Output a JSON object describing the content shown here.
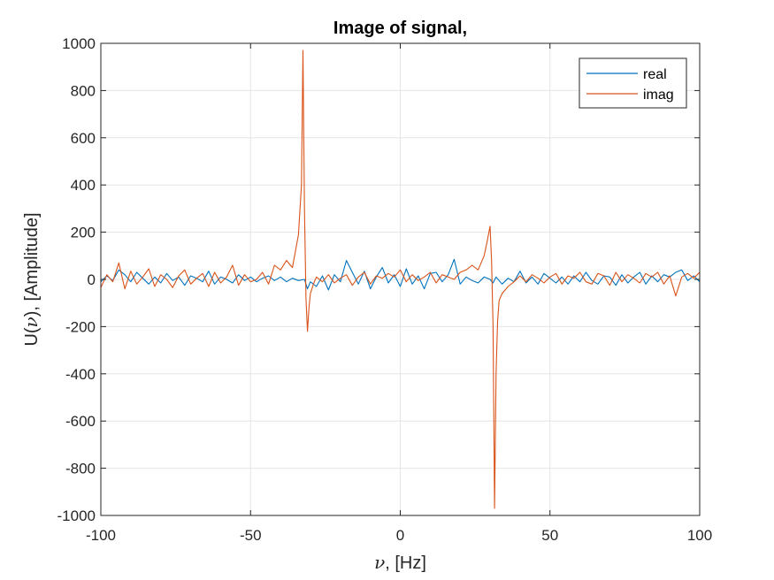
{
  "chart_data": {
    "type": "line",
    "title": "Image of signal,",
    "xlabel_symbol": "ν",
    "xlabel_unit": ", [Hz]",
    "ylabel_prefix": "U(",
    "ylabel_symbol": "ν",
    "ylabel_suffix": "), [Amplitude]",
    "xlim": [
      -100,
      100
    ],
    "ylim": [
      -1000,
      1000
    ],
    "xticks": [
      -100,
      -50,
      0,
      50,
      100
    ],
    "yticks": [
      -1000,
      -800,
      -600,
      -400,
      -200,
      0,
      200,
      400,
      600,
      800,
      1000
    ],
    "grid": true,
    "legend_position": "top-right",
    "colors": {
      "real": "#0072BD",
      "imag": "#D95319"
    },
    "series": [
      {
        "name": "real",
        "color": "#0072BD",
        "x": [
          -100,
          -98,
          -96,
          -94,
          -92,
          -90,
          -88,
          -86,
          -84,
          -82,
          -80,
          -78,
          -76,
          -74,
          -72,
          -70,
          -68,
          -66,
          -64,
          -62,
          -60,
          -58,
          -56,
          -54,
          -52,
          -50,
          -48,
          -46,
          -44,
          -42,
          -40,
          -38,
          -36,
          -34,
          -32,
          -31,
          -30,
          -28,
          -26,
          -24,
          -22,
          -20,
          -18,
          -16,
          -14,
          -12,
          -10,
          -8,
          -6,
          -4,
          -2,
          0,
          2,
          4,
          6,
          8,
          10,
          12,
          14,
          16,
          18,
          20,
          22,
          24,
          26,
          28,
          30,
          31,
          32,
          34,
          36,
          38,
          40,
          42,
          44,
          46,
          48,
          50,
          52,
          54,
          56,
          58,
          60,
          62,
          64,
          66,
          68,
          70,
          72,
          74,
          76,
          78,
          80,
          82,
          84,
          86,
          88,
          90,
          92,
          94,
          96,
          98,
          100
        ],
        "y": [
          -10,
          15,
          -5,
          40,
          20,
          -10,
          30,
          5,
          -20,
          10,
          -15,
          25,
          -5,
          10,
          -25,
          15,
          5,
          -10,
          35,
          -20,
          10,
          0,
          -15,
          20,
          -5,
          10,
          -10,
          5,
          15,
          -5,
          10,
          -10,
          5,
          -5,
          0,
          -40,
          -10,
          -30,
          15,
          -45,
          20,
          -10,
          80,
          30,
          -20,
          35,
          -40,
          10,
          50,
          -15,
          20,
          -30,
          45,
          -20,
          15,
          -40,
          25,
          30,
          -10,
          20,
          85,
          -20,
          10,
          -5,
          -15,
          10,
          0,
          -15,
          10,
          -20,
          5,
          -10,
          35,
          -15,
          10,
          -20,
          25,
          5,
          -15,
          10,
          -20,
          15,
          -10,
          30,
          -5,
          -20,
          15,
          10,
          -25,
          20,
          -15,
          10,
          30,
          -20,
          15,
          -10,
          20,
          10,
          30,
          40,
          -5,
          15,
          -10
        ]
      },
      {
        "name": "imag",
        "color": "#D95319",
        "x": [
          -100,
          -98,
          -96,
          -94,
          -92,
          -90,
          -88,
          -86,
          -84,
          -82,
          -80,
          -78,
          -76,
          -74,
          -72,
          -70,
          -68,
          -66,
          -64,
          -62,
          -60,
          -58,
          -56,
          -54,
          -52,
          -50,
          -48,
          -46,
          -44,
          -42,
          -40,
          -38,
          -36,
          -34,
          -33,
          -32.5,
          -32,
          -31.5,
          -31,
          -30.5,
          -30,
          -29,
          -28,
          -26,
          -24,
          -22,
          -20,
          -18,
          -16,
          -14,
          -12,
          -10,
          -8,
          -6,
          -4,
          -2,
          0,
          2,
          4,
          6,
          8,
          10,
          12,
          14,
          16,
          18,
          20,
          22,
          24,
          26,
          28,
          29,
          30,
          30.5,
          31,
          31.5,
          32,
          32.5,
          33,
          34,
          36,
          38,
          40,
          42,
          44,
          46,
          48,
          50,
          52,
          54,
          56,
          58,
          60,
          62,
          64,
          66,
          68,
          70,
          72,
          74,
          76,
          78,
          80,
          82,
          84,
          86,
          88,
          90,
          92,
          94,
          96,
          98,
          100
        ],
        "y": [
          -35,
          20,
          -10,
          70,
          -40,
          35,
          -20,
          10,
          45,
          -30,
          20,
          0,
          -35,
          15,
          40,
          -20,
          5,
          25,
          -30,
          30,
          -15,
          10,
          60,
          -25,
          20,
          -10,
          0,
          30,
          -20,
          60,
          40,
          80,
          50,
          190,
          400,
          970,
          300,
          -80,
          -220,
          -120,
          -60,
          -20,
          10,
          -10,
          20,
          -15,
          5,
          20,
          -25,
          10,
          30,
          -20,
          15,
          5,
          25,
          10,
          40,
          -10,
          20,
          -5,
          10,
          30,
          -15,
          20,
          10,
          0,
          30,
          40,
          60,
          40,
          100,
          160,
          225,
          80,
          -200,
          -970,
          -400,
          -180,
          -90,
          -60,
          -30,
          -10,
          15,
          -10,
          20,
          5,
          -15,
          10,
          25,
          -20,
          15,
          5,
          30,
          -10,
          -20,
          25,
          15,
          -25,
          30,
          -10,
          20,
          5,
          -15,
          25,
          10,
          30,
          -20,
          15,
          -70,
          10,
          25,
          5,
          30
        ]
      }
    ]
  }
}
